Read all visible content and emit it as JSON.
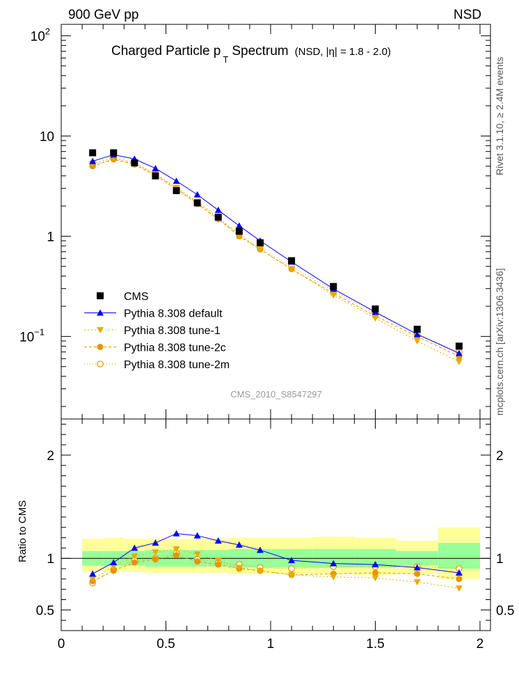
{
  "header": {
    "energy_label": "900 GeV pp",
    "process_label": "NSD"
  },
  "side_text": {
    "rivet": "Rivet 3.1.10, ≥ 2.4M events",
    "mcplots": "mcplots.cern.ch [arXiv:1306.3436]"
  },
  "chart_data": [
    {
      "type": "scatter",
      "title": "Charged Particle p",
      "title_sub": "T",
      "title_rest": "Spectrum",
      "title_note": "(NSD, |η| = 1.8 - 2.0)",
      "watermark": "CMS_2010_S8547297",
      "yscale": "log",
      "ylim": [
        0.015,
        130
      ],
      "xlim": [
        0,
        2.05
      ],
      "y_ticks": [
        {
          "value": 100,
          "label": "10",
          "sup": "2"
        },
        {
          "value": 10,
          "label": "10",
          "sup": ""
        },
        {
          "value": 1,
          "label": "1",
          "sup": ""
        },
        {
          "value": 0.1,
          "label": "10",
          "sup": "−1"
        }
      ],
      "legend": {
        "position": "left",
        "entries": [
          {
            "label": "CMS",
            "marker": "square",
            "color": "#000000",
            "dash": "none"
          },
          {
            "label": "Pythia 8.308 default",
            "marker": "triangle-up",
            "color": "#0000ff",
            "dash": "none"
          },
          {
            "label": "Pythia 8.308 tune-1",
            "marker": "triangle-down",
            "color": "#e6ac00",
            "dash": "2,3"
          },
          {
            "label": "Pythia 8.308 tune-2c",
            "marker": "circle",
            "color": "#e69500",
            "dash": "4,3"
          },
          {
            "label": "Pythia 8.308 tune-2m",
            "marker": "circle-open",
            "color": "#e69500",
            "dash": "1,3"
          }
        ]
      },
      "x": [
        0.15,
        0.25,
        0.35,
        0.45,
        0.55,
        0.65,
        0.75,
        0.85,
        0.95,
        1.1,
        1.3,
        1.5,
        1.7,
        1.9
      ],
      "series": [
        {
          "name": "CMS",
          "values": [
            6.8,
            6.8,
            5.4,
            4.0,
            2.85,
            2.15,
            1.55,
            1.12,
            0.86,
            0.57,
            0.315,
            0.188,
            0.118,
            0.08
          ]
        },
        {
          "name": "Pythia 8.308 default",
          "values": [
            5.6,
            6.5,
            5.9,
            4.75,
            3.55,
            2.6,
            1.82,
            1.27,
            0.9,
            0.555,
            0.298,
            0.175,
            0.105,
            0.068
          ]
        },
        {
          "name": "Pythia 8.308 tune-1",
          "values": [
            5.3,
            6.1,
            5.4,
            4.2,
            3.05,
            2.2,
            1.55,
            1.02,
            0.74,
            0.47,
            0.258,
            0.152,
            0.09,
            0.056
          ]
        },
        {
          "name": "Pythia 8.308 tune-2c",
          "values": [
            5.0,
            5.85,
            5.2,
            4.05,
            2.95,
            2.1,
            1.48,
            1.0,
            0.74,
            0.47,
            0.27,
            0.16,
            0.1,
            0.063
          ]
        },
        {
          "name": "Pythia 8.308 tune-2m",
          "values": [
            5.05,
            5.95,
            5.3,
            4.1,
            3.0,
            2.15,
            1.5,
            1.05,
            0.76,
            0.5,
            0.285,
            0.17,
            0.106,
            0.07
          ]
        }
      ]
    },
    {
      "type": "line",
      "ylabel": "Ratio to CMS",
      "xlim": [
        0,
        2.05
      ],
      "ylim": [
        0.3,
        2.35
      ],
      "x_ticks": [
        0,
        0.5,
        1,
        1.5,
        2
      ],
      "y_ticks": [
        0.5,
        1,
        2
      ],
      "bands": {
        "edges": [
          0.1,
          0.2,
          0.3,
          0.4,
          0.5,
          0.6,
          0.7,
          0.8,
          0.9,
          1.0,
          1.2,
          1.4,
          1.6,
          1.8,
          2.0
        ],
        "inner": [
          [
            0.93,
            1.07
          ],
          [
            0.93,
            1.07
          ],
          [
            0.93,
            1.07
          ],
          [
            0.92,
            1.08
          ],
          [
            0.92,
            1.08
          ],
          [
            0.92,
            1.08
          ],
          [
            0.92,
            1.08
          ],
          [
            0.91,
            1.09
          ],
          [
            0.91,
            1.09
          ],
          [
            0.91,
            1.09
          ],
          [
            0.91,
            1.09
          ],
          [
            0.91,
            1.09
          ],
          [
            0.93,
            1.07
          ],
          [
            0.9,
            1.15
          ]
        ],
        "outer": [
          [
            0.87,
            1.19
          ],
          [
            0.87,
            1.2
          ],
          [
            0.87,
            1.19
          ],
          [
            0.86,
            1.19
          ],
          [
            0.86,
            1.19
          ],
          [
            0.86,
            1.19
          ],
          [
            0.86,
            1.19
          ],
          [
            0.85,
            1.2
          ],
          [
            0.85,
            1.2
          ],
          [
            0.85,
            1.2
          ],
          [
            0.85,
            1.21
          ],
          [
            0.84,
            1.2
          ],
          [
            0.85,
            1.17
          ],
          [
            0.8,
            1.3
          ]
        ]
      },
      "x": [
        0.15,
        0.25,
        0.35,
        0.45,
        0.55,
        0.65,
        0.75,
        0.85,
        0.95,
        1.1,
        1.3,
        1.5,
        1.7,
        1.9
      ],
      "series": [
        {
          "name": "Pythia 8.308 default",
          "values": [
            0.85,
            0.96,
            1.1,
            1.15,
            1.24,
            1.22,
            1.17,
            1.13,
            1.08,
            0.98,
            0.95,
            0.94,
            0.91,
            0.86
          ]
        },
        {
          "name": "Pythia 8.308 tune-1",
          "values": [
            0.8,
            0.92,
            1.02,
            1.06,
            1.09,
            1.04,
            0.98,
            0.91,
            0.88,
            0.84,
            0.82,
            0.81,
            0.77,
            0.71
          ]
        },
        {
          "name": "Pythia 8.308 tune-2c",
          "values": [
            0.78,
            0.88,
            0.96,
            0.99,
            1.03,
            0.97,
            0.94,
            0.9,
            0.88,
            0.84,
            0.85,
            0.86,
            0.85,
            0.8
          ]
        },
        {
          "name": "Pythia 8.308 tune-2m",
          "values": [
            0.76,
            0.89,
            0.98,
            1.0,
            1.05,
            0.99,
            0.96,
            0.94,
            0.91,
            0.9,
            0.92,
            0.92,
            0.92,
            0.9
          ]
        }
      ]
    }
  ]
}
